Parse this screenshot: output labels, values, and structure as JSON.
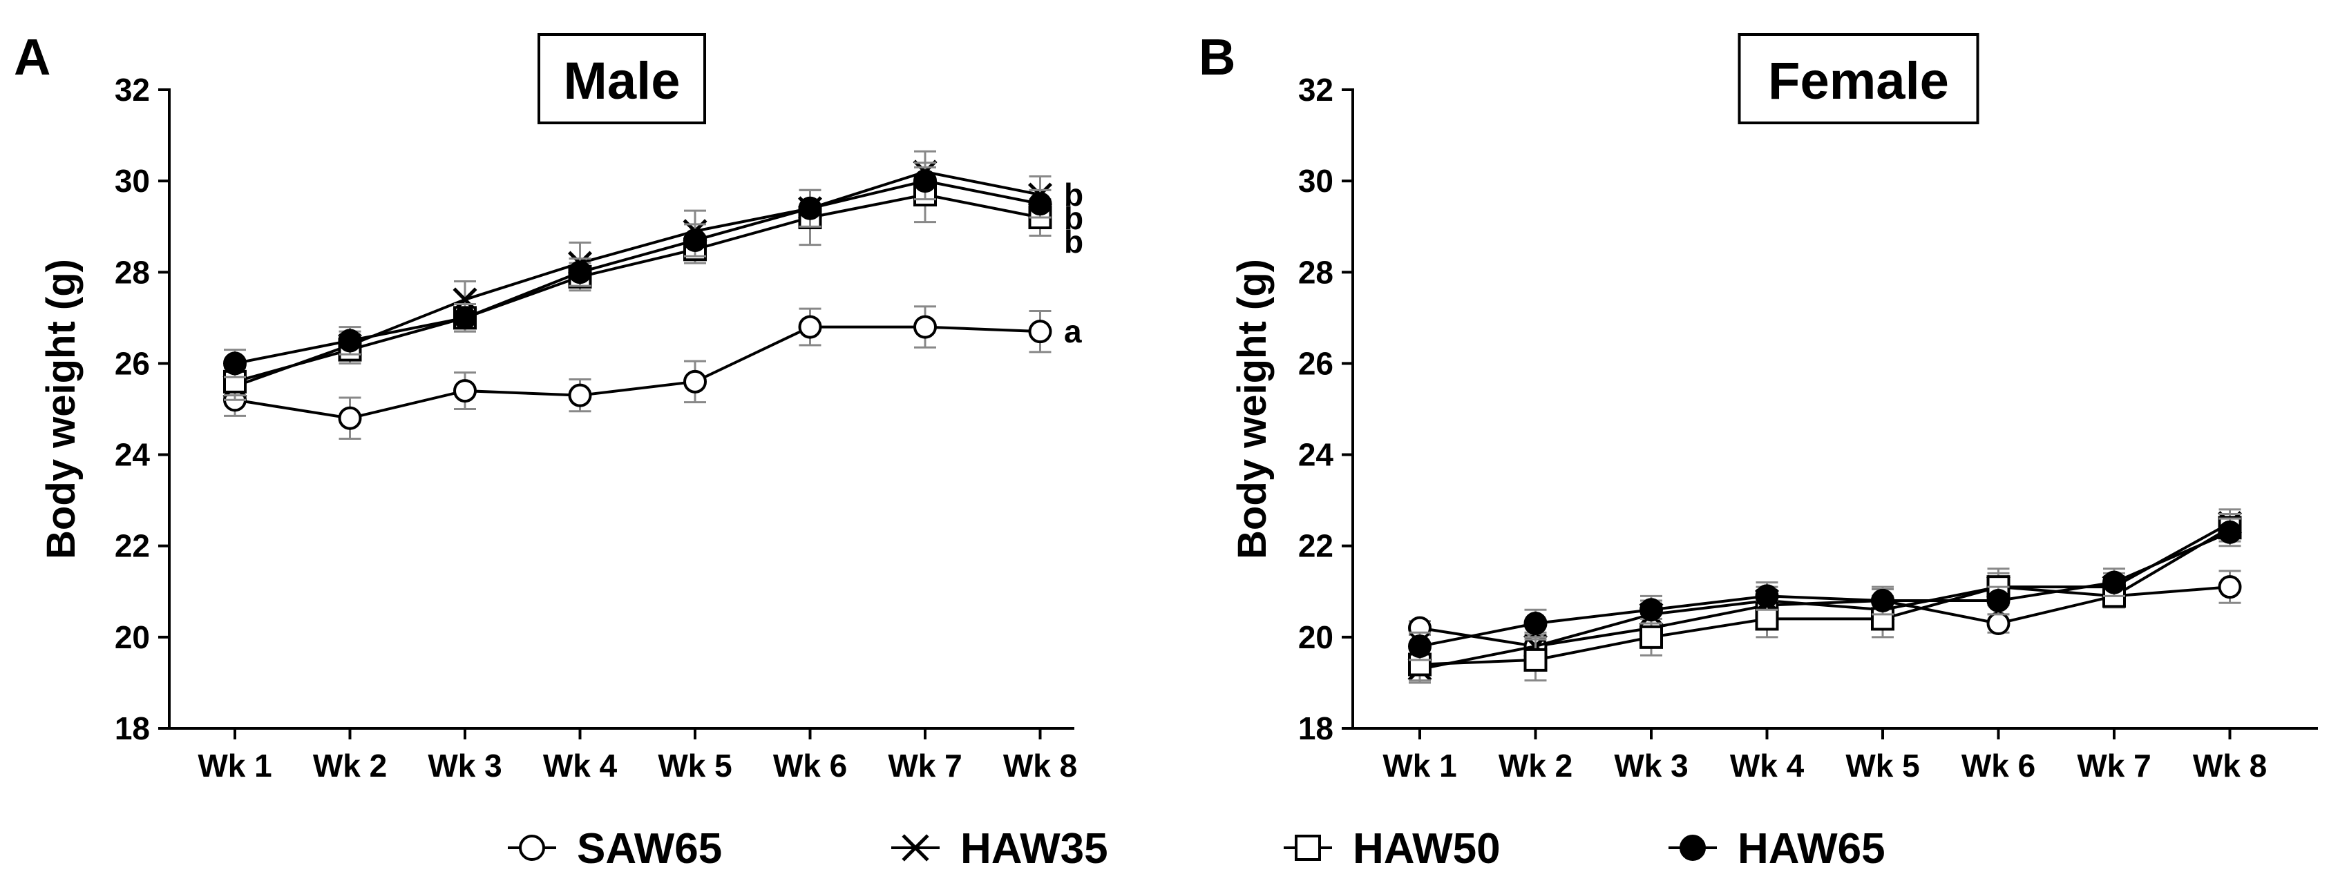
{
  "chart_data": [
    {
      "panel": "A",
      "type": "line",
      "title": "Male",
      "xlabel": "",
      "ylabel": "Body weight (g)",
      "ylim": [
        18,
        32
      ],
      "yticks": [
        18,
        20,
        22,
        24,
        26,
        28,
        30,
        32
      ],
      "categories": [
        "Wk 1",
        "Wk 2",
        "Wk 3",
        "Wk 4",
        "Wk 5",
        "Wk 6",
        "Wk 7",
        "Wk 8"
      ],
      "series": [
        {
          "name": "SAW65",
          "marker": "open-circle",
          "values": [
            25.2,
            24.8,
            25.4,
            25.3,
            25.6,
            26.8,
            26.8,
            26.7
          ],
          "errors": [
            0.35,
            0.45,
            0.4,
            0.35,
            0.45,
            0.4,
            0.45,
            0.45
          ],
          "sig": "a"
        },
        {
          "name": "HAW35",
          "marker": "x",
          "values": [
            25.5,
            26.4,
            27.4,
            28.2,
            28.9,
            29.4,
            30.2,
            29.7
          ],
          "errors": [
            0.3,
            0.3,
            0.4,
            0.45,
            0.45,
            0.4,
            0.45,
            0.4
          ],
          "sig": "b"
        },
        {
          "name": "HAW50",
          "marker": "open-square",
          "values": [
            25.6,
            26.3,
            27.0,
            27.9,
            28.5,
            29.2,
            29.7,
            29.2
          ],
          "errors": [
            0.3,
            0.3,
            0.3,
            0.3,
            0.3,
            0.6,
            0.6,
            0.4
          ],
          "sig": "b"
        },
        {
          "name": "HAW65",
          "marker": "filled-circle",
          "values": [
            26.0,
            26.5,
            27.0,
            28.0,
            28.7,
            29.4,
            30.0,
            29.5
          ],
          "errors": [
            0.3,
            0.3,
            0.3,
            0.3,
            0.35,
            0.4,
            0.4,
            0.3
          ],
          "sig": "b"
        }
      ]
    },
    {
      "panel": "B",
      "type": "line",
      "title": "Female",
      "xlabel": "",
      "ylabel": "Body weight (g)",
      "ylim": [
        18,
        32
      ],
      "yticks": [
        18,
        20,
        22,
        24,
        26,
        28,
        30,
        32
      ],
      "categories": [
        "Wk 1",
        "Wk 2",
        "Wk 3",
        "Wk 4",
        "Wk 5",
        "Wk 6",
        "Wk 7",
        "Wk 8"
      ],
      "series": [
        {
          "name": "SAW65",
          "marker": "open-circle",
          "values": [
            20.2,
            19.8,
            20.2,
            20.7,
            20.8,
            20.3,
            20.9,
            21.1
          ],
          "errors": [
            0.15,
            0.25,
            0.3,
            0.25,
            0.25,
            0.2,
            0.2,
            0.35
          ],
          "sig": ""
        },
        {
          "name": "HAW35",
          "marker": "x",
          "values": [
            19.3,
            19.8,
            20.5,
            20.8,
            20.6,
            21.1,
            21.1,
            22.5
          ],
          "errors": [
            0.3,
            0.3,
            0.3,
            0.3,
            0.3,
            0.3,
            0.3,
            0.3
          ],
          "sig": ""
        },
        {
          "name": "HAW50",
          "marker": "open-square",
          "values": [
            19.4,
            19.5,
            20.0,
            20.4,
            20.4,
            21.1,
            20.9,
            22.4
          ],
          "errors": [
            0.35,
            0.45,
            0.4,
            0.4,
            0.4,
            0.4,
            0.25,
            0.3
          ],
          "sig": ""
        },
        {
          "name": "HAW65",
          "marker": "filled-circle",
          "values": [
            19.8,
            20.3,
            20.6,
            20.9,
            20.8,
            20.8,
            21.2,
            22.3
          ],
          "errors": [
            0.3,
            0.3,
            0.3,
            0.3,
            0.3,
            0.3,
            0.3,
            0.3
          ],
          "sig": ""
        }
      ]
    }
  ],
  "legend": {
    "placement": "bottom-center",
    "items": [
      {
        "name": "SAW65",
        "marker": "open-circle"
      },
      {
        "name": "HAW35",
        "marker": "x"
      },
      {
        "name": "HAW50",
        "marker": "open-square"
      },
      {
        "name": "HAW65",
        "marker": "filled-circle"
      }
    ]
  },
  "colors": {
    "ink": "#000000",
    "error_bar": "#888888",
    "background": "#ffffff"
  }
}
